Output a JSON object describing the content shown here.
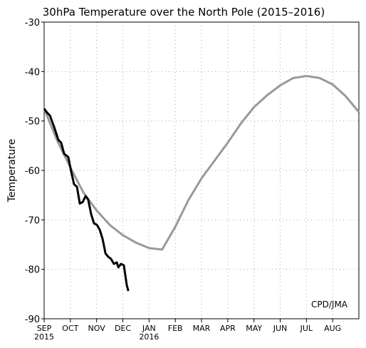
{
  "chart_data": {
    "type": "line",
    "title": "30hPa Temperature over the North Pole (2015–2016)",
    "y_label": "Temperature",
    "annotation": "CPD/JMA",
    "xlim": [
      0,
      12
    ],
    "xticks": [
      {
        "value": 0,
        "label": "SEP"
      },
      {
        "value": 1,
        "label": "OCT"
      },
      {
        "value": 2,
        "label": "NOV"
      },
      {
        "value": 3,
        "label": "DEC"
      },
      {
        "value": 4,
        "label": "JAN"
      },
      {
        "value": 5,
        "label": "FEB"
      },
      {
        "value": 6,
        "label": "MAR"
      },
      {
        "value": 7,
        "label": "APR"
      },
      {
        "value": 8,
        "label": "MAY"
      },
      {
        "value": 9,
        "label": "JUN"
      },
      {
        "value": 10,
        "label": "JUL"
      },
      {
        "value": 11,
        "label": "AUG"
      }
    ],
    "x_year_labels": [
      {
        "value": 0,
        "label": "2015"
      },
      {
        "value": 4,
        "label": "2016"
      }
    ],
    "ylim": [
      -90,
      -30
    ],
    "yticks": [
      -90,
      -80,
      -70,
      -60,
      -50,
      -40,
      -30
    ],
    "grid": true,
    "series": [
      {
        "color": "#999999",
        "width": 3,
        "x": [
          0,
          0.5,
          1,
          1.5,
          2,
          2.5,
          3,
          3.5,
          4,
          4.5,
          5,
          5.5,
          6,
          6.5,
          7,
          7.5,
          8,
          8.5,
          9,
          9.5,
          10,
          10.5,
          11,
          11.5,
          12
        ],
        "values": [
          -47.5,
          -54,
          -59.4,
          -64.5,
          -68.1,
          -71,
          -73.1,
          -74.6,
          -75.7,
          -76,
          -71.4,
          -66,
          -61.6,
          -58,
          -54.4,
          -50.5,
          -47.2,
          -44.8,
          -42.8,
          -41.3,
          -40.9,
          -41.3,
          -42.6,
          -45,
          -48.2
        ]
      },
      {
        "color": "#000000",
        "width": 3,
        "x": [
          0,
          0.11,
          0.22,
          0.38,
          0.54,
          0.65,
          0.76,
          0.92,
          1.03,
          1.14,
          1.25,
          1.36,
          1.47,
          1.58,
          1.68,
          1.79,
          1.9,
          2.01,
          2.12,
          2.23,
          2.34,
          2.45,
          2.55,
          2.66,
          2.77,
          2.83,
          2.93,
          3.04,
          3.15,
          3.21
        ],
        "values": [
          -47.5,
          -48.3,
          -48.9,
          -51.2,
          -53.8,
          -54.4,
          -56.6,
          -57.3,
          -60.2,
          -62.8,
          -63.3,
          -66.7,
          -66.4,
          -65.2,
          -65.9,
          -68.8,
          -70.7,
          -71,
          -72,
          -73.9,
          -76.8,
          -77.5,
          -77.9,
          -78.9,
          -78.6,
          -79.6,
          -78.9,
          -79.2,
          -83.2,
          -84.4
        ]
      }
    ]
  }
}
